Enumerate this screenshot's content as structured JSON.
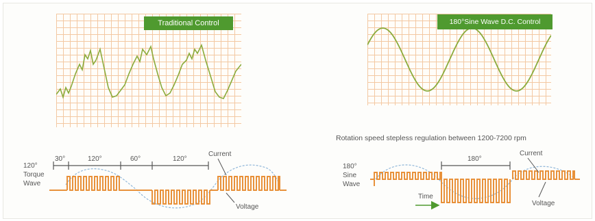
{
  "left": {
    "badge": "Traditional Control",
    "wave_label": [
      "120°",
      "Torque",
      "Wave"
    ],
    "intervals": [
      "30°",
      "120°",
      "60°",
      "120°"
    ],
    "current_label": "Current",
    "voltage_label": "Voltage"
  },
  "right": {
    "badge": "180°Sine Wave D.C. Control",
    "caption": "Rotation speed stepless regulation between 1200-7200 rpm",
    "wave_label": [
      "180°",
      "Sine",
      "Wave"
    ],
    "interval": "180°",
    "current_label": "Current",
    "voltage_label": "Voltage",
    "time_label": "Time"
  },
  "colors": {
    "accent_green": "#4f9a2f",
    "grid_orange": "#f3c8a2",
    "trace_green": "#8bab3c",
    "pulse_orange": "#e8913a",
    "dashed_blue": "#8fb6d9"
  }
}
